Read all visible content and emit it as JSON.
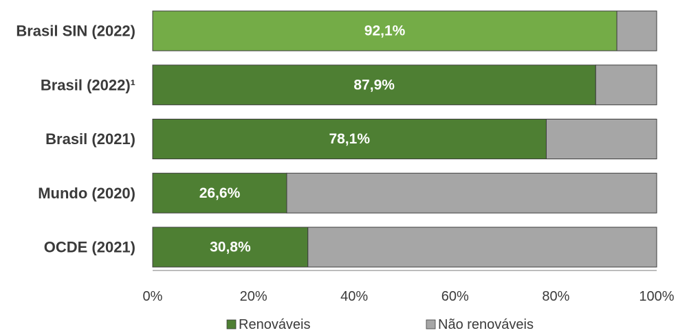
{
  "chart_data": {
    "type": "bar",
    "orientation": "horizontal",
    "stacked": true,
    "categories": [
      "Brasil SIN (2022)",
      "Brasil (2022)¹",
      "Brasil (2021)",
      "Mundo (2020)",
      "OCDE (2021)"
    ],
    "series": [
      {
        "name": "Renováveis",
        "values": [
          92.1,
          87.9,
          78.1,
          26.6,
          30.8
        ],
        "labels": [
          "92,1%",
          "87,9%",
          "78,1%",
          "26,6%",
          "30,8%"
        ],
        "colors": [
          "#74ac47",
          "#4e7f33",
          "#4e7f33",
          "#4e7f33",
          "#4e7f33"
        ]
      },
      {
        "name": "Não renováveis",
        "values": [
          7.9,
          12.1,
          21.9,
          73.4,
          69.2
        ],
        "colors": [
          "#a6a6a6",
          "#a6a6a6",
          "#a6a6a6",
          "#a6a6a6",
          "#a6a6a6"
        ]
      }
    ],
    "xlim": [
      0,
      100
    ],
    "xticks": [
      0,
      20,
      40,
      60,
      80,
      100
    ],
    "xtick_labels": [
      "0%",
      "20%",
      "40%",
      "60%",
      "80%",
      "100%"
    ],
    "grid": false,
    "legend": {
      "position": "bottom",
      "entries": [
        {
          "label": "Renováveis",
          "color": "#4e7f33"
        },
        {
          "label": "Não renováveis",
          "color": "#a6a6a6"
        }
      ]
    }
  }
}
